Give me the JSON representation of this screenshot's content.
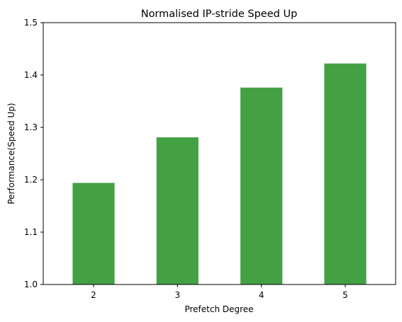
{
  "chart_data": {
    "type": "bar",
    "title": "Normalised IP-stride Speed Up",
    "xlabel": "Prefetch Degree",
    "ylabel": "Performance(Speed Up)",
    "categories": [
      "2",
      "3",
      "4",
      "5"
    ],
    "values": [
      1.194,
      1.281,
      1.376,
      1.422
    ],
    "ylim": [
      1.0,
      1.5
    ],
    "yticks": [
      "1.0",
      "1.1",
      "1.2",
      "1.3",
      "1.4",
      "1.5"
    ],
    "bar_color": "#43a143",
    "grid": false,
    "legend": "none"
  }
}
